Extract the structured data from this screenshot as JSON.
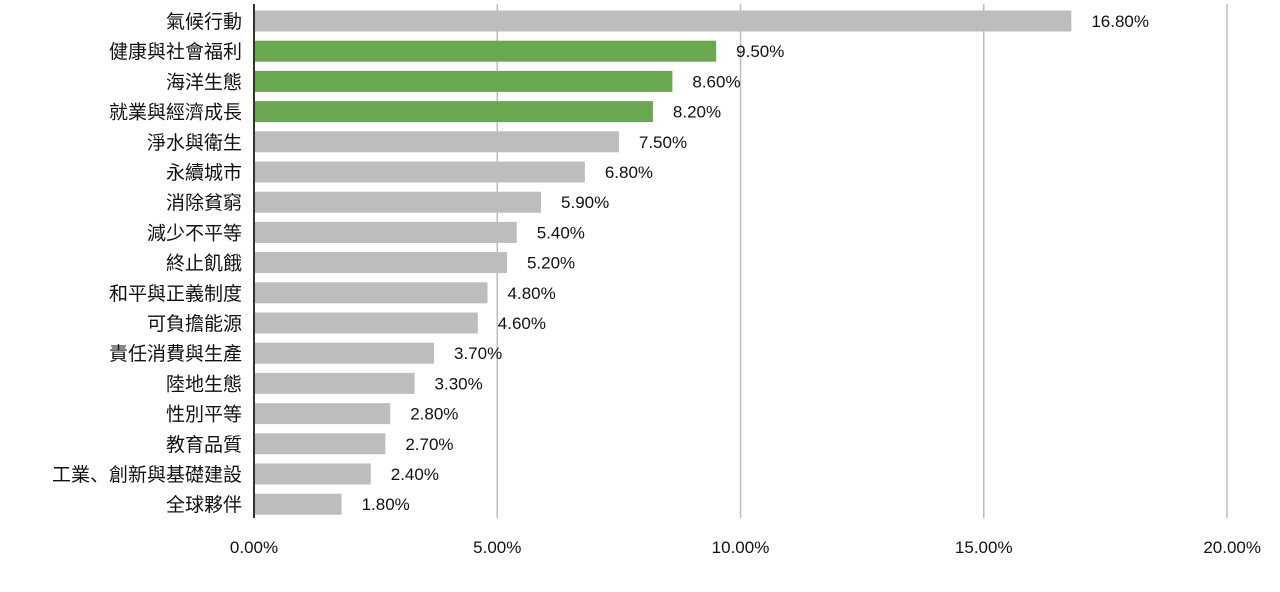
{
  "chart_data": {
    "type": "bar",
    "orientation": "horizontal",
    "categories": [
      "氣候行動",
      "健康與社會福利",
      "海洋生態",
      "就業與經濟成長",
      "淨水與衛生",
      "永續城市",
      "消除貧窮",
      "減少不平等",
      "終止飢餓",
      "和平與正義制度",
      "可負擔能源",
      "責任消費與生產",
      "陸地生態",
      "性別平等",
      "教育品質",
      "工業、創新與基礎建設",
      "全球夥伴"
    ],
    "values": [
      16.8,
      9.5,
      8.6,
      8.2,
      7.5,
      6.8,
      5.9,
      5.4,
      5.2,
      4.8,
      4.6,
      3.7,
      3.3,
      2.8,
      2.7,
      2.4,
      1.8
    ],
    "value_labels": [
      "16.80%",
      "9.50%",
      "8.60%",
      "8.20%",
      "7.50%",
      "6.80%",
      "5.90%",
      "5.40%",
      "5.20%",
      "4.80%",
      "4.60%",
      "3.70%",
      "3.30%",
      "2.80%",
      "2.70%",
      "2.40%",
      "1.80%"
    ],
    "highlighted": [
      false,
      true,
      true,
      true,
      false,
      false,
      false,
      false,
      false,
      false,
      false,
      false,
      false,
      false,
      false,
      false,
      false
    ],
    "xlim": [
      0,
      20
    ],
    "xticks": [
      0,
      5,
      10,
      15,
      20
    ],
    "xtick_labels": [
      "0.00%",
      "5.00%",
      "10.00%",
      "15.00%",
      "20.00%"
    ],
    "grid": true,
    "colors": {
      "default_bar": "#bdbdbd",
      "highlight_bar": "#6aa84f"
    }
  }
}
